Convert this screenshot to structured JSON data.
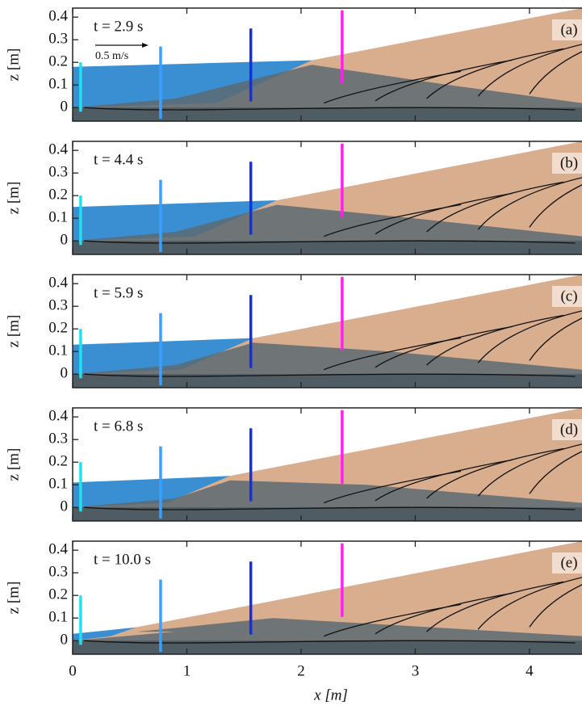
{
  "panels": [
    {
      "time": "t = 2.9 s",
      "label": "(a)"
    },
    {
      "time": "t = 4.4 s",
      "label": "(b)"
    },
    {
      "time": "t = 5.9 s",
      "label": "(c)"
    },
    {
      "time": "t = 6.8 s",
      "label": "(d)"
    },
    {
      "time": "t = 10.0 s",
      "label": "(e)"
    }
  ],
  "scale_label": "0.5 m/s",
  "y_label": "z [m]",
  "x_label": "x [m]",
  "xlim": [
    0,
    4.46
  ],
  "ylim": [
    -0.06,
    0.44
  ],
  "xticks": [
    0,
    1,
    2,
    3,
    4
  ],
  "yticks": [
    0,
    0.1,
    0.2,
    0.3,
    0.4
  ]
}
